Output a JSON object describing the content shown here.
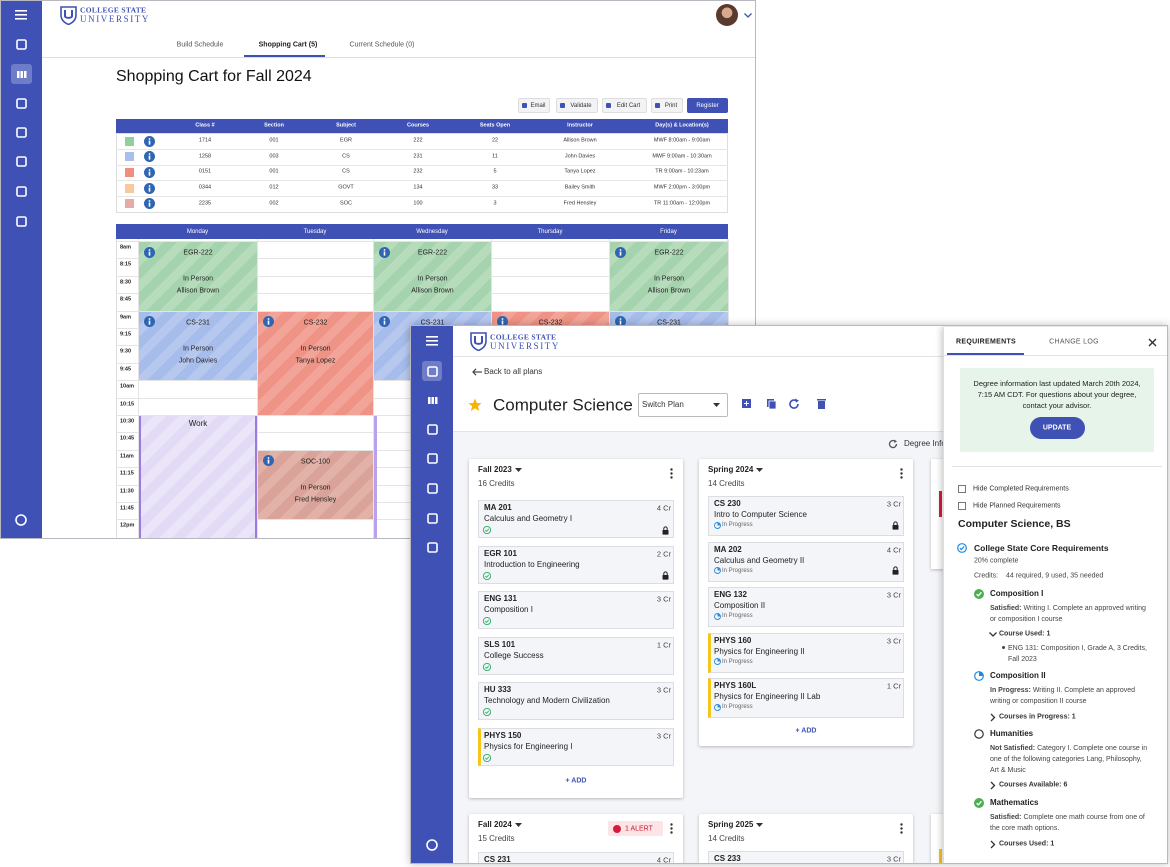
{
  "schedule_window": {
    "logo": {
      "line1": "COLLEGE STATE",
      "line2": "UNIVERSITY"
    },
    "tabs": [
      "Build Schedule",
      "Shopping Cart (5)",
      "Current Schedule (0)"
    ],
    "title": "Shopping Cart for Fall 2024",
    "actions": [
      "Email",
      "Validate",
      "Edit Cart",
      "Print",
      "Register"
    ],
    "cart_table": {
      "columns": [
        "Class #",
        "Section",
        "Subject",
        "Courses",
        "Seats Open",
        "Instructor",
        "Day(s) & Location(s)"
      ],
      "rows": [
        [
          "1714",
          "001",
          "EGR",
          "222",
          "22",
          "Allison Brown",
          "MWF 8:00am - 9:00am"
        ],
        [
          "1258",
          "003",
          "CS",
          "231",
          "11",
          "John Davies",
          "MWF 9:00am - 10:30am"
        ],
        [
          "0151",
          "001",
          "CS",
          "232",
          "5",
          "Tanya Lopez",
          "TR 9:00am - 10:23am"
        ],
        [
          "0344",
          "012",
          "GOVT",
          "134",
          "33",
          "Bailey Smith",
          "MWF 2:00pm - 3:00pm"
        ],
        [
          "2235",
          "002",
          "SOC",
          "100",
          "3",
          "Fred Hensley",
          "TR 11:00am - 12:00pm"
        ]
      ]
    },
    "calendar": {
      "days": [
        "Monday",
        "Tuesday",
        "Wednesday",
        "Thursday",
        "Friday"
      ],
      "times": [
        "8am",
        "8:15",
        "8:30",
        "8:45",
        "9am",
        "9:15",
        "9:30",
        "9:45",
        "10am",
        "10:15",
        "10:30",
        "10:45",
        "11am",
        "11:15",
        "11:30",
        "11:45",
        "12pm"
      ],
      "events": [
        {
          "title": "EGR-222",
          "mode": "In Person",
          "instructor": "Allison Brown"
        },
        {
          "title": "CS-231",
          "mode": "In Person",
          "instructor": "John Davies"
        },
        {
          "title": "CS-232",
          "mode": "In Person",
          "instructor": "Tanya Lopez"
        },
        {
          "title": "SOC-100",
          "mode": "In Person",
          "instructor": "Fred Hensley"
        },
        {
          "title": "EGR-222",
          "mode": "In Person",
          "instructor": "Allison Brown"
        },
        {
          "title": "CS-231"
        },
        {
          "title": "CS-232"
        },
        {
          "title": "EGR-222",
          "mode": "In Person",
          "instructor": "Allison Brown"
        },
        {
          "title": "CS-231"
        },
        {
          "title": "Work"
        }
      ]
    }
  },
  "planner_window": {
    "logo": {
      "line1": "COLLEGE STATE",
      "line2": "UNIVERSITY"
    },
    "back_link": "Back to all plans",
    "plan_title": "Computer Science",
    "switch_plan": "Switch Plan",
    "degree_info": "Degree Info",
    "terms": [
      {
        "name": "Fall 2023",
        "credits": "16 Credits",
        "add": "+ ADD",
        "courses": [
          {
            "code": "MA 201",
            "title": "Calculus and Geometry I",
            "credits": "4 Cr"
          },
          {
            "code": "EGR 101",
            "title": "Introduction to Engineering",
            "credits": "2 Cr"
          },
          {
            "code": "ENG 131",
            "title": "Composition I",
            "credits": "3 Cr"
          },
          {
            "code": "SLS 101",
            "title": "College Success",
            "credits": "1 Cr"
          },
          {
            "code": "HU 333",
            "title": "Technology and Modern Civilization",
            "credits": "3 Cr"
          },
          {
            "code": "PHYS 150",
            "title": "Physics for Engineering I",
            "credits": "3 Cr"
          }
        ]
      },
      {
        "name": "Spring 2024",
        "credits": "14 Credits",
        "add": "+ ADD",
        "courses": [
          {
            "code": "CS 230",
            "title": "Intro to Computer Science",
            "credits": "3 Cr",
            "status": "In Progress"
          },
          {
            "code": "MA 202",
            "title": "Calculus and Geometry II",
            "credits": "4 Cr",
            "status": "In Progress"
          },
          {
            "code": "ENG 132",
            "title": "Composition II",
            "credits": "3 Cr",
            "status": "In Progress"
          },
          {
            "code": "PHYS 160",
            "title": "Physics for Engineering II",
            "credits": "3 Cr",
            "status": "In Progress"
          },
          {
            "code": "PHYS 160L",
            "title": "Physics for Engineering II Lab",
            "credits": "1 Cr",
            "status": "In Progress"
          }
        ]
      },
      {
        "name": "Fall 2024",
        "credits": "15 Credits",
        "alert": "1 ALERT",
        "courses": [
          {
            "code": "CS 231",
            "credits": "4 Cr"
          }
        ]
      },
      {
        "name": "Spring 2025",
        "credits": "14 Credits",
        "courses": [
          {
            "code": "CS 233",
            "credits": "3 Cr"
          }
        ]
      }
    ]
  },
  "requirements_panel": {
    "tabs": [
      "REQUIREMENTS",
      "CHANGE LOG"
    ],
    "notice": "Degree information last updated March 20th 2024, 7:15 AM CDT. For questions about your degree, contact your advisor.",
    "update_button": "UPDATE",
    "filters": [
      "Hide Completed Requirements",
      "Hide Planned Requirements"
    ],
    "degree": "Computer Science, BS",
    "group": {
      "name": "College State Core Requirements",
      "progress": "20% complete",
      "credits_label": "Credits:",
      "credits": "44 required, 9 used, 35 needed"
    },
    "requirements": [
      {
        "name": "Composition I",
        "status": "Satisfied:",
        "detail": "Writing I. Complete an approved writing or composition I course",
        "toggle": "Course Used: 1",
        "courses": [
          "ENG 131: Composition I, Grade A, 3 Credits, Fall 2023"
        ]
      },
      {
        "name": "Composition II",
        "status": "In Progress:",
        "detail": "Writing II. Complete an approved writing or composition II course",
        "toggle": "Courses in Progress: 1"
      },
      {
        "name": "Humanities",
        "status": "Not Satisfied:",
        "detail": "Category I. Complete one course in one of the following categories Lang, Philosophy, Art & Music",
        "toggle": "Courses Available: 6"
      },
      {
        "name": "Mathematics",
        "status": "Satisfied:",
        "detail": "Complete one math course from one of the core math options.",
        "toggle": "Courses Used: 1"
      }
    ]
  }
}
